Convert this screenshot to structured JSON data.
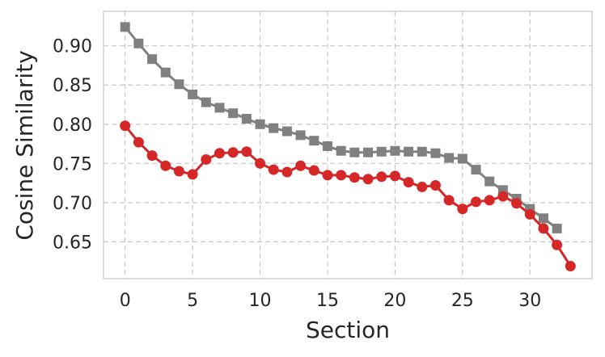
{
  "chart_data": {
    "type": "line",
    "xlabel": "Section",
    "ylabel": "Cosine Similarity",
    "xlim": [
      -1.6,
      34.6
    ],
    "ylim": [
      0.603,
      0.944
    ],
    "xticks": [
      0,
      5,
      10,
      15,
      20,
      25,
      30
    ],
    "yticks": [
      0.65,
      0.7,
      0.75,
      0.8,
      0.85,
      0.9
    ],
    "ytick_labels": [
      "0.65",
      "0.70",
      "0.75",
      "0.80",
      "0.85",
      "0.90"
    ],
    "grid": true,
    "series": [
      {
        "color": "#808080",
        "marker": "square",
        "x": [
          0,
          1,
          2,
          3,
          4,
          5,
          6,
          7,
          8,
          9,
          10,
          11,
          12,
          13,
          14,
          15,
          16,
          17,
          18,
          19,
          20,
          21,
          22,
          23,
          24,
          25,
          26,
          27,
          28,
          29,
          30,
          31,
          32
        ],
        "values": [
          0.924,
          0.903,
          0.883,
          0.866,
          0.851,
          0.838,
          0.828,
          0.821,
          0.814,
          0.807,
          0.8,
          0.795,
          0.791,
          0.786,
          0.779,
          0.772,
          0.766,
          0.764,
          0.764,
          0.765,
          0.766,
          0.765,
          0.765,
          0.763,
          0.757,
          0.756,
          0.742,
          0.727,
          0.716,
          0.705,
          0.692,
          0.68,
          0.667
        ]
      },
      {
        "color": "#d62728",
        "marker": "circle",
        "x": [
          0,
          1,
          2,
          3,
          4,
          5,
          6,
          7,
          8,
          9,
          10,
          11,
          12,
          13,
          14,
          15,
          16,
          17,
          18,
          19,
          20,
          21,
          22,
          23,
          24,
          25,
          26,
          27,
          28,
          29,
          30,
          31,
          32,
          33
        ],
        "values": [
          0.798,
          0.777,
          0.76,
          0.747,
          0.74,
          0.736,
          0.755,
          0.763,
          0.764,
          0.765,
          0.75,
          0.742,
          0.739,
          0.747,
          0.741,
          0.735,
          0.735,
          0.732,
          0.73,
          0.733,
          0.734,
          0.726,
          0.72,
          0.722,
          0.703,
          0.692,
          0.701,
          0.703,
          0.708,
          0.699,
          0.685,
          0.667,
          0.646,
          0.619
        ]
      }
    ]
  }
}
